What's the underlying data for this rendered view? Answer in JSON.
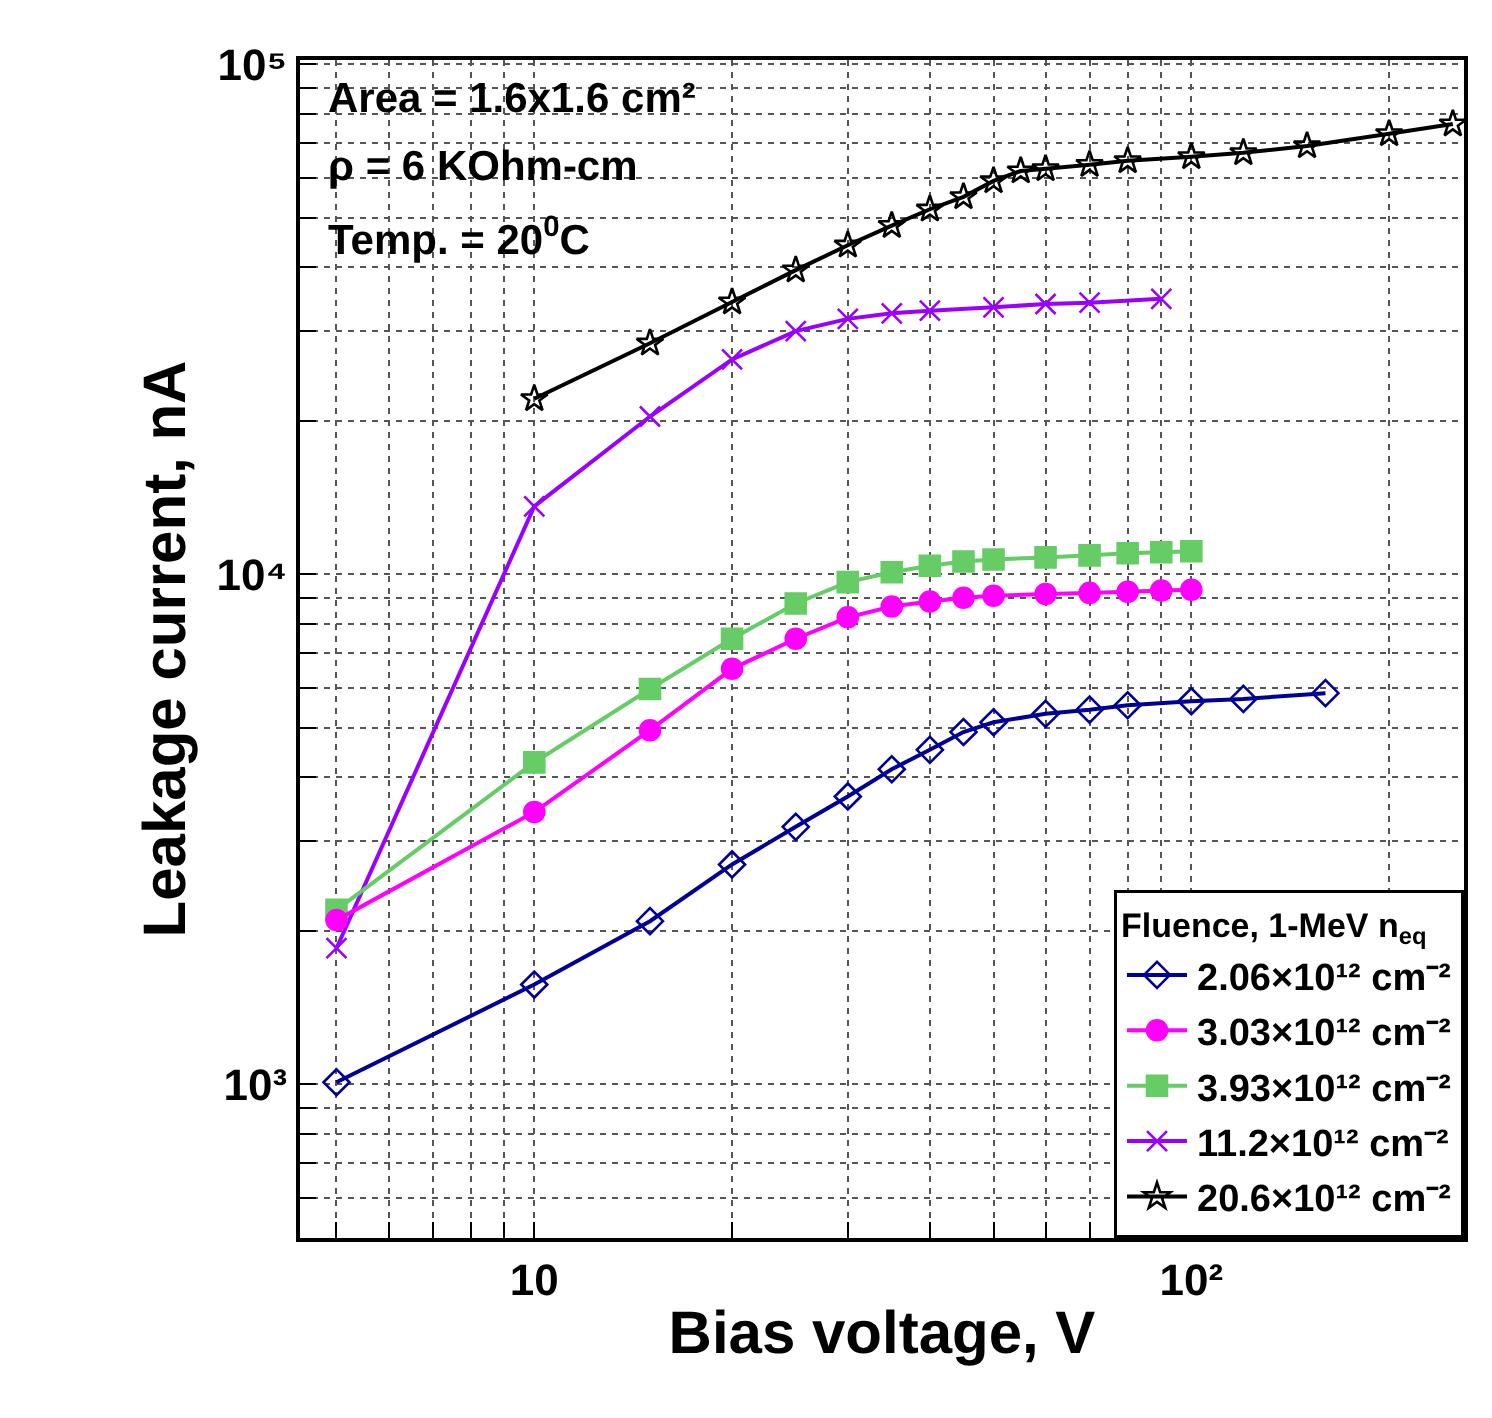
{
  "chart_data": {
    "type": "line",
    "xlabel": "Bias voltage, V",
    "ylabel": "Leakage current, nA",
    "legend_title": "Fluence, 1-MeV n$_{eq}$",
    "log": "xy",
    "grid": true,
    "legend": "bottom right",
    "line_style": "solid",
    "annotations": [
      "Area = 1.6x1.6 cm²",
      "ρ = 6 KOhm-cm",
      "Temp. = 20$^{0}$C"
    ],
    "xlim": [
      4.4,
      260
    ],
    "ylim": [
      500,
      102000
    ],
    "xticks": [
      {
        "value": 5,
        "label": null
      },
      {
        "value": 6,
        "label": null
      },
      {
        "value": 7,
        "label": null
      },
      {
        "value": 8,
        "label": null
      },
      {
        "value": 9,
        "label": null
      },
      10,
      {
        "value": 20,
        "label": null
      },
      {
        "value": 30,
        "label": null
      },
      {
        "value": 40,
        "label": null
      },
      {
        "value": 50,
        "label": null
      },
      {
        "value": 60,
        "label": null
      },
      {
        "value": 70,
        "label": null
      },
      {
        "value": 80,
        "label": null
      },
      {
        "value": 90,
        "label": null
      },
      {
        "value": 100,
        "label": "10²"
      },
      {
        "value": 200,
        "label": null
      }
    ],
    "yticks": [
      {
        "value": 600,
        "label": null
      },
      {
        "value": 700,
        "label": null
      },
      {
        "value": 800,
        "label": null
      },
      {
        "value": 900,
        "label": null
      },
      {
        "value": 1000,
        "label": "10³"
      },
      {
        "value": 2000,
        "label": null
      },
      {
        "value": 3000,
        "label": null
      },
      {
        "value": 4000,
        "label": null
      },
      {
        "value": 5000,
        "label": null
      },
      {
        "value": 6000,
        "label": null
      },
      {
        "value": 7000,
        "label": null
      },
      {
        "value": 8000,
        "label": null
      },
      {
        "value": 9000,
        "label": null
      },
      {
        "value": 10000,
        "label": "10⁴"
      },
      {
        "value": 20000,
        "label": null
      },
      {
        "value": 30000,
        "label": null
      },
      {
        "value": 40000,
        "label": null
      },
      {
        "value": 50000,
        "label": null
      },
      {
        "value": 60000,
        "label": null
      },
      {
        "value": 70000,
        "label": null
      },
      {
        "value": 80000,
        "label": null
      },
      {
        "value": 90000,
        "label": null
      },
      {
        "value": 100000,
        "label": "10⁵"
      }
    ],
    "series": [
      {
        "name": "2.06×10¹² cm⁻²",
        "color": "#000099",
        "marker": "diamond",
        "x": [
          5,
          10,
          15,
          20,
          25,
          30,
          35,
          40,
          45,
          50,
          60,
          70,
          80,
          100,
          120,
          160
        ],
        "values": [
          1010,
          1570,
          2090,
          2700,
          3200,
          3670,
          4150,
          4530,
          4910,
          5130,
          5330,
          5430,
          5540,
          5640,
          5700,
          5850
        ]
      },
      {
        "name": "3.03×10¹² cm⁻²",
        "color": "#ff00ff",
        "marker": "circle",
        "x": [
          5,
          10,
          15,
          20,
          25,
          30,
          35,
          40,
          45,
          50,
          60,
          70,
          80,
          90,
          100
        ],
        "values": [
          2100,
          3420,
          4950,
          6530,
          7480,
          8240,
          8650,
          8850,
          9000,
          9080,
          9150,
          9200,
          9250,
          9300,
          9330
        ]
      },
      {
        "name": "3.93×10¹² cm⁻²",
        "color": "#66cc66",
        "marker": "square",
        "x": [
          5,
          10,
          15,
          20,
          25,
          30,
          35,
          40,
          45,
          50,
          60,
          70,
          80,
          90,
          100
        ],
        "values": [
          2200,
          4280,
          5960,
          7480,
          8770,
          9660,
          10100,
          10400,
          10600,
          10700,
          10800,
          10900,
          11000,
          11050,
          11100
        ]
      },
      {
        "name": "11.2×10¹² cm⁻²",
        "color": "#9900ff",
        "marker": "cross",
        "x": [
          5,
          10,
          15,
          20,
          25,
          30,
          35,
          40,
          50,
          60,
          70,
          90
        ],
        "values": [
          1850,
          13600,
          20400,
          26400,
          30000,
          31700,
          32500,
          32900,
          33400,
          33900,
          34100,
          34700
        ]
      },
      {
        "name": "20.6×10¹² cm⁻²",
        "color": "#000000",
        "marker": "star",
        "x": [
          10,
          15,
          20,
          25,
          30,
          35,
          40,
          45,
          50,
          55,
          60,
          70,
          80,
          100,
          120,
          150,
          200,
          250
        ],
        "values": [
          22100,
          28400,
          34200,
          39500,
          44200,
          48300,
          52000,
          55000,
          59100,
          61800,
          62400,
          63600,
          64700,
          65900,
          67100,
          69200,
          73100,
          76400
        ]
      }
    ]
  }
}
